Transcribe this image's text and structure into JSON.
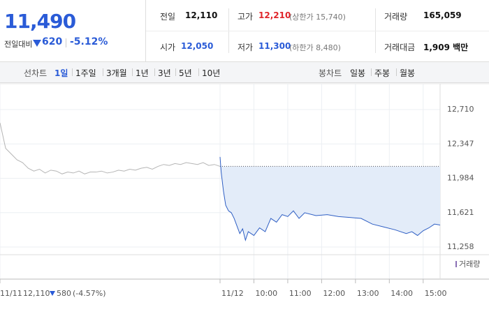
{
  "quote": {
    "price": "11,490",
    "change_label": "전일대비",
    "change": "620",
    "change_pct": "-5.12%"
  },
  "info": [
    {
      "label": "전일",
      "value": "12,110"
    },
    {
      "label": "고가",
      "value": "12,210",
      "note": "(상한가 15,740)"
    },
    {
      "label": "거래량",
      "value": "165,059"
    },
    {
      "label": "시가",
      "value": "12,050"
    },
    {
      "label": "저가",
      "value": "11,300",
      "note": "(하한가 8,480)"
    },
    {
      "label": "거래대금",
      "value": "1,909 백만"
    }
  ],
  "line_tabs": {
    "label": "선차트",
    "items": [
      "1일",
      "1주일",
      "3개월",
      "1년",
      "3년",
      "5년",
      "10년"
    ]
  },
  "candle_tabs": {
    "label": "봉차트",
    "items": [
      "일봉",
      "주봉",
      "월봉"
    ]
  },
  "chart_data": {
    "type": "line",
    "xlim": [
      0,
      780
    ],
    "ylim": [
      11177,
      12946
    ],
    "xticks": [
      {
        "value": 0,
        "label": "11/11"
      },
      {
        "value": 390,
        "label": "11/12"
      },
      {
        "value": 450,
        "label": "10:00"
      },
      {
        "value": 510,
        "label": "11:00"
      },
      {
        "value": 570,
        "label": "12:00"
      },
      {
        "value": 630,
        "label": "13:00"
      },
      {
        "value": 690,
        "label": "14:00"
      },
      {
        "value": 750,
        "label": "15:00"
      }
    ],
    "yticks": [
      {
        "value": 12710,
        "label": "12,710"
      },
      {
        "value": 12347,
        "label": "12,347"
      },
      {
        "value": 11984,
        "label": "11,984"
      },
      {
        "value": 11621,
        "label": "11,621"
      },
      {
        "value": 11258,
        "label": "11,258"
      }
    ],
    "grid": true,
    "baseline": 12110,
    "series": [
      {
        "color": "#b5b5b5",
        "x": [
          0,
          10,
          20,
          30,
          40,
          50,
          60,
          70,
          80,
          90,
          100,
          110,
          120,
          130,
          140,
          150,
          160,
          170,
          180,
          190,
          200,
          210,
          220,
          230,
          240,
          250,
          260,
          270,
          280,
          290,
          300,
          310,
          320,
          330,
          340,
          350,
          360,
          370,
          380,
          390
        ],
        "values": [
          12570,
          12300,
          12240,
          12180,
          12150,
          12090,
          12060,
          12080,
          12040,
          12070,
          12060,
          12030,
          12050,
          12040,
          12060,
          12030,
          12050,
          12050,
          12060,
          12040,
          12050,
          12070,
          12060,
          12080,
          12070,
          12090,
          12100,
          12080,
          12110,
          12130,
          12120,
          12140,
          12130,
          12150,
          12140,
          12130,
          12150,
          12120,
          12130,
          12110
        ]
      },
      {
        "color": "#2f5fc4",
        "area_color": "#e3ecf9",
        "x": [
          390,
          392,
          396,
          400,
          405,
          410,
          415,
          420,
          425,
          430,
          435,
          440,
          450,
          460,
          470,
          480,
          490,
          500,
          510,
          520,
          530,
          540,
          560,
          580,
          600,
          620,
          640,
          660,
          680,
          700,
          720,
          730,
          740,
          750,
          760,
          770,
          780
        ],
        "values": [
          12210,
          12050,
          11850,
          11700,
          11640,
          11620,
          11560,
          11480,
          11400,
          11450,
          11330,
          11420,
          11380,
          11460,
          11420,
          11560,
          11520,
          11600,
          11580,
          11640,
          11560,
          11620,
          11590,
          11600,
          11580,
          11570,
          11560,
          11500,
          11470,
          11440,
          11400,
          11420,
          11380,
          11430,
          11460,
          11500,
          11490
        ]
      }
    ],
    "annotation": {
      "price": "12,110",
      "change": "580",
      "pct": "(-4.57%)"
    },
    "volume_label": "거래량"
  }
}
